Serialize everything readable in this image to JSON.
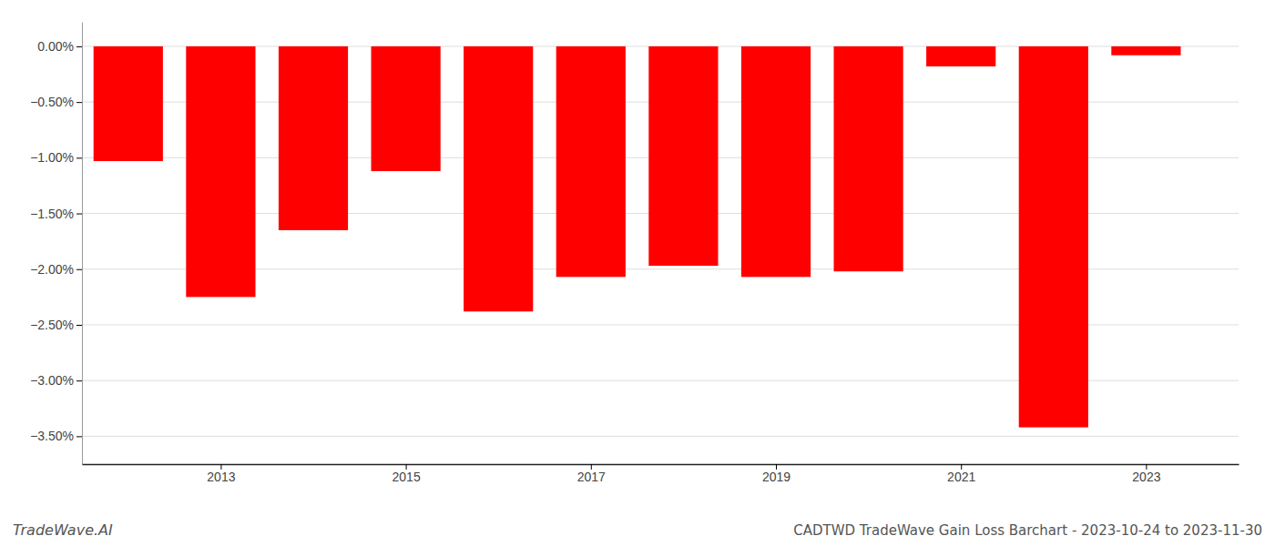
{
  "chart_data": {
    "type": "bar",
    "title": "CADTWD TradeWave Gain Loss Barchart - 2023-10-24 to 2023-11-30",
    "annotations": [
      "TradeWave.AI"
    ],
    "x": [
      2012,
      2013,
      2014,
      2015,
      2016,
      2017,
      2018,
      2019,
      2020,
      2021,
      2022,
      2023
    ],
    "values": [
      -1.03,
      -2.25,
      -1.65,
      -1.12,
      -2.38,
      -2.07,
      -1.97,
      -2.07,
      -2.02,
      -0.18,
      -3.42,
      -0.08
    ],
    "color": "#ff0000",
    "xlim": [
      2011.5,
      2024.0
    ],
    "xticks": [
      2013,
      2015,
      2017,
      2019,
      2021,
      2023
    ],
    "ylim": [
      -3.75,
      0.22
    ],
    "yticks": [
      {
        "value": 0.0,
        "label": "0.00%"
      },
      {
        "value": -0.5,
        "label": "−0.50%"
      },
      {
        "value": -1.0,
        "label": "−1.00%"
      },
      {
        "value": -1.5,
        "label": "−1.50%"
      },
      {
        "value": -2.0,
        "label": "−2.00%"
      },
      {
        "value": -2.5,
        "label": "−2.50%"
      },
      {
        "value": -3.0,
        "label": "−3.00%"
      },
      {
        "value": -3.5,
        "label": "−3.50%"
      }
    ],
    "grid": true
  }
}
